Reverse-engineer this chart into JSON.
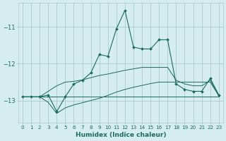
{
  "xlabel": "Humidex (Indice chaleur)",
  "bg_color": "#d6edf0",
  "grid_color": "#aac8cc",
  "line_color": "#1a6b5a",
  "xlim": [
    -0.5,
    23.5
  ],
  "ylim": [
    -13.6,
    -10.35
  ],
  "yticks": [
    -13,
    -12,
    -11
  ],
  "xticks": [
    0,
    1,
    2,
    3,
    4,
    5,
    6,
    7,
    8,
    9,
    10,
    11,
    12,
    13,
    14,
    15,
    16,
    17,
    18,
    19,
    20,
    21,
    22,
    23
  ],
  "x": [
    0,
    1,
    2,
    3,
    4,
    5,
    6,
    7,
    8,
    9,
    10,
    11,
    12,
    13,
    14,
    15,
    16,
    17,
    18,
    19,
    20,
    21,
    22,
    23
  ],
  "main_y": [
    -12.9,
    -12.9,
    -12.9,
    -12.85,
    -13.3,
    -12.9,
    -12.55,
    -12.45,
    -12.25,
    -11.75,
    -11.8,
    -11.05,
    -10.55,
    -11.55,
    -11.6,
    -11.6,
    -11.35,
    -11.35,
    -12.55,
    -12.7,
    -12.75,
    -12.75,
    -12.4,
    -12.85
  ],
  "flat_y": [
    -12.9,
    -12.9,
    -12.9,
    -12.9,
    -12.9,
    -12.9,
    -12.9,
    -12.9,
    -12.9,
    -12.9,
    -12.9,
    -12.9,
    -12.9,
    -12.9,
    -12.9,
    -12.9,
    -12.9,
    -12.9,
    -12.9,
    -12.9,
    -12.9,
    -12.9,
    -12.9,
    -12.9
  ],
  "upper_y": [
    -12.9,
    -12.9,
    -12.9,
    -12.75,
    -12.6,
    -12.5,
    -12.48,
    -12.44,
    -12.38,
    -12.32,
    -12.28,
    -12.23,
    -12.18,
    -12.14,
    -12.1,
    -12.1,
    -12.1,
    -12.1,
    -12.45,
    -12.55,
    -12.6,
    -12.6,
    -12.45,
    -12.87
  ],
  "lower_y": [
    -12.9,
    -12.9,
    -12.9,
    -13.05,
    -13.35,
    -13.2,
    -13.12,
    -13.06,
    -13.0,
    -12.94,
    -12.86,
    -12.77,
    -12.7,
    -12.64,
    -12.59,
    -12.54,
    -12.5,
    -12.5,
    -12.5,
    -12.5,
    -12.5,
    -12.5,
    -12.5,
    -12.87
  ]
}
